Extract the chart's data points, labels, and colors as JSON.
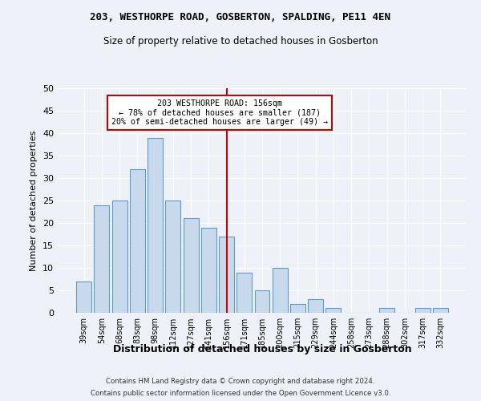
{
  "title1": "203, WESTHORPE ROAD, GOSBERTON, SPALDING, PE11 4EN",
  "title2": "Size of property relative to detached houses in Gosberton",
  "xlabel": "Distribution of detached houses by size in Gosberton",
  "ylabel": "Number of detached properties",
  "categories": [
    "39sqm",
    "54sqm",
    "68sqm",
    "83sqm",
    "98sqm",
    "112sqm",
    "127sqm",
    "141sqm",
    "156sqm",
    "171sqm",
    "185sqm",
    "200sqm",
    "215sqm",
    "229sqm",
    "244sqm",
    "258sqm",
    "273sqm",
    "288sqm",
    "302sqm",
    "317sqm",
    "332sqm"
  ],
  "values": [
    7,
    24,
    25,
    32,
    39,
    25,
    21,
    19,
    17,
    9,
    5,
    10,
    2,
    3,
    1,
    0,
    0,
    1,
    0,
    1,
    1
  ],
  "bar_color": "#c9d9ec",
  "bar_edge_color": "#5b9bd5",
  "marker_index": 8,
  "marker_line_color": "#cc0000",
  "annotation_line1": "203 WESTHORPE ROAD: 156sqm",
  "annotation_line2": "← 78% of detached houses are smaller (187)",
  "annotation_line3": "20% of semi-detached houses are larger (49) →",
  "annotation_box_color": "#cc0000",
  "ylim": [
    0,
    50
  ],
  "yticks": [
    0,
    5,
    10,
    15,
    20,
    25,
    30,
    35,
    40,
    45,
    50
  ],
  "footer1": "Contains HM Land Registry data © Crown copyright and database right 2024.",
  "footer2": "Contains public sector information licensed under the Open Government Licence v3.0.",
  "bg_color": "#eef2f8",
  "grid_color": "#ffffff"
}
